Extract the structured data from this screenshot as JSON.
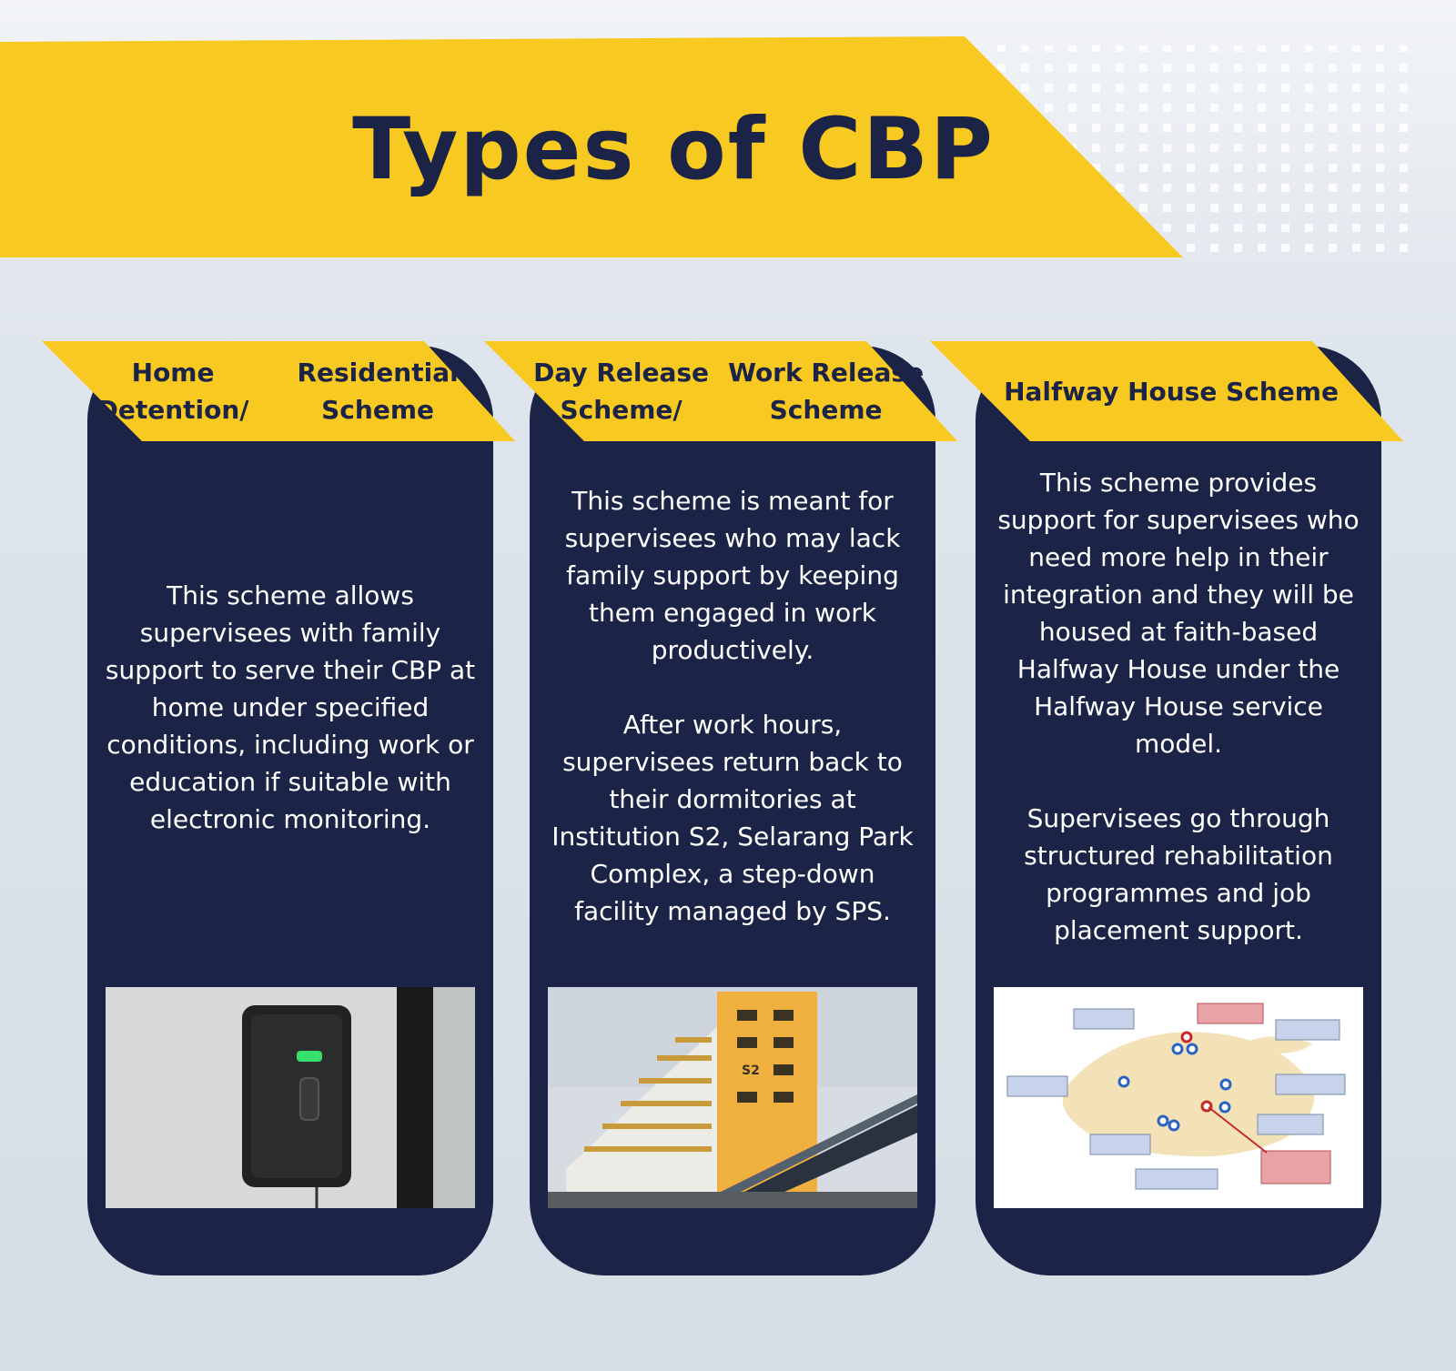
{
  "header": {
    "title": "Types of CBP"
  },
  "colors": {
    "navy": "#1b2346",
    "yellow": "#f8c920",
    "background": "#d9e0e8"
  },
  "cards": [
    {
      "title_lines": [
        "Home Detention/",
        "Residential Scheme"
      ],
      "paragraphs": [
        "This scheme allows supervisees with family support to serve their CBP at home under specified conditions, including work or education if suitable with electronic monitoring."
      ],
      "image": "electronic-monitoring-device-photo"
    },
    {
      "title_lines": [
        "Day Release Scheme/",
        "Work Release Scheme"
      ],
      "paragraphs": [
        "This scheme is meant for supervisees who may lack family support by keeping them engaged in work productively.",
        "After work hours, supervisees return back to their dormitories at Institution S2, Selarang Park Complex, a step-down facility managed by SPS."
      ],
      "image": "institution-s2-building-photo",
      "image_text": {
        "building_sign": "S2"
      }
    },
    {
      "title_lines": [
        "Halfway House Scheme"
      ],
      "paragraphs": [
        "This scheme provides support for supervisees who need more help in their integration and they will be housed at faith-based Halfway House under the Halfway House service model.",
        "Supervisees go through structured rehabilitation programmes and job placement support."
      ],
      "image": "halfway-house-locations-map"
    }
  ]
}
